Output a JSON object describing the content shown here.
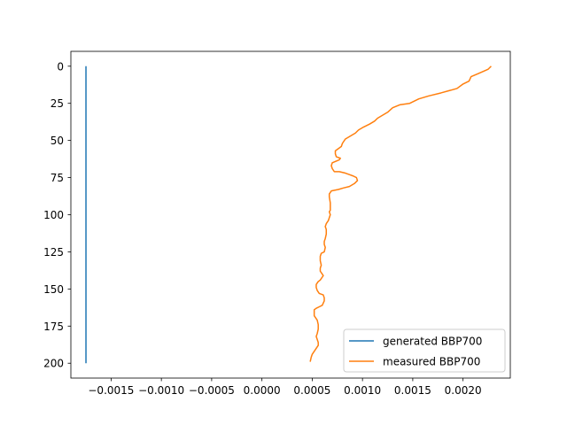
{
  "chart_data": {
    "type": "line",
    "title": "",
    "xlabel": "",
    "ylabel": "",
    "xlim": [
      -0.0019,
      0.00247
    ],
    "ylim": [
      210,
      -10
    ],
    "y_inverted": true,
    "grid": false,
    "legend_position": "lower-right",
    "x_ticks": [
      {
        "value": -0.0015,
        "label": "−0.0015"
      },
      {
        "value": -0.001,
        "label": "−0.0010"
      },
      {
        "value": -0.0005,
        "label": "−0.0005"
      },
      {
        "value": 0.0,
        "label": "0.0000"
      },
      {
        "value": 0.0005,
        "label": "0.0005"
      },
      {
        "value": 0.001,
        "label": "0.0010"
      },
      {
        "value": 0.0015,
        "label": "0.0015"
      },
      {
        "value": 0.002,
        "label": "0.0020"
      }
    ],
    "y_ticks": [
      {
        "value": 0,
        "label": "0"
      },
      {
        "value": 25,
        "label": "25"
      },
      {
        "value": 50,
        "label": "50"
      },
      {
        "value": 75,
        "label": "75"
      },
      {
        "value": 100,
        "label": "100"
      },
      {
        "value": 125,
        "label": "125"
      },
      {
        "value": 150,
        "label": "150"
      },
      {
        "value": 175,
        "label": "175"
      },
      {
        "value": 200,
        "label": "200"
      }
    ],
    "series": [
      {
        "name": "generated BBP700",
        "color": "#1f77b4",
        "x": [
          -0.00175,
          -0.00175
        ],
        "y": [
          0,
          200
        ]
      },
      {
        "name": "measured BBP700",
        "color": "#ff7f0e",
        "x": [
          0.00228,
          0.00225,
          0.00215,
          0.00208,
          0.00206,
          0.002,
          0.00194,
          0.00178,
          0.00166,
          0.00156,
          0.00147,
          0.00137,
          0.0013,
          0.00125,
          0.0012,
          0.00115,
          0.00112,
          0.00107,
          0.00101,
          0.00096,
          0.00093,
          0.00088,
          0.00083,
          0.0008,
          0.00079,
          0.00073,
          0.00073,
          0.00074,
          0.00078,
          0.00077,
          0.0007,
          0.00069,
          0.0007,
          0.00072,
          0.00077,
          0.00083,
          0.00087,
          0.00091,
          0.00094,
          0.00095,
          0.00092,
          0.00087,
          0.00081,
          0.00076,
          0.00069,
          0.00067,
          0.00067,
          0.00068,
          0.00068,
          0.00067,
          0.00068,
          0.00067,
          0.00066,
          0.00064,
          0.00063,
          0.00064,
          0.00064,
          0.00063,
          0.00062,
          0.00062,
          0.00063,
          0.00062,
          0.00059,
          0.00058,
          0.00058,
          0.00059,
          0.00058,
          0.00058,
          0.0006,
          0.00061,
          0.00059,
          0.00058,
          0.00056,
          0.00054,
          0.00054,
          0.00055,
          0.00057,
          0.00061,
          0.00062,
          0.00062,
          0.0006,
          0.00057,
          0.00054,
          0.00052,
          0.00052,
          0.00054,
          0.00055,
          0.00056,
          0.00056,
          0.00055,
          0.00054,
          0.00055,
          0.00056,
          0.00056,
          0.00054,
          0.00052,
          0.0005,
          0.00049,
          0.00048
        ],
        "y": [
          0,
          2,
          5,
          7,
          10,
          12,
          15,
          18,
          20,
          22,
          25,
          26,
          28,
          31,
          33,
          35,
          37,
          39,
          41,
          43,
          45,
          47,
          49,
          52,
          54,
          57,
          59,
          61,
          62,
          63,
          65,
          67,
          69,
          71,
          71,
          72,
          73,
          74,
          75,
          77,
          79,
          81,
          82,
          83,
          84,
          86,
          88,
          92,
          97,
          98,
          100,
          102,
          104,
          106,
          108,
          110,
          113,
          116,
          118,
          120,
          122,
          125,
          126,
          128,
          131,
          134,
          136,
          138,
          140,
          141,
          143,
          144,
          145,
          147,
          149,
          151,
          153,
          154,
          156,
          158,
          161,
          162,
          163,
          164,
          168,
          170,
          171,
          174,
          177,
          180,
          182,
          184,
          186,
          188,
          190,
          192,
          194,
          196,
          199
        ]
      }
    ]
  }
}
